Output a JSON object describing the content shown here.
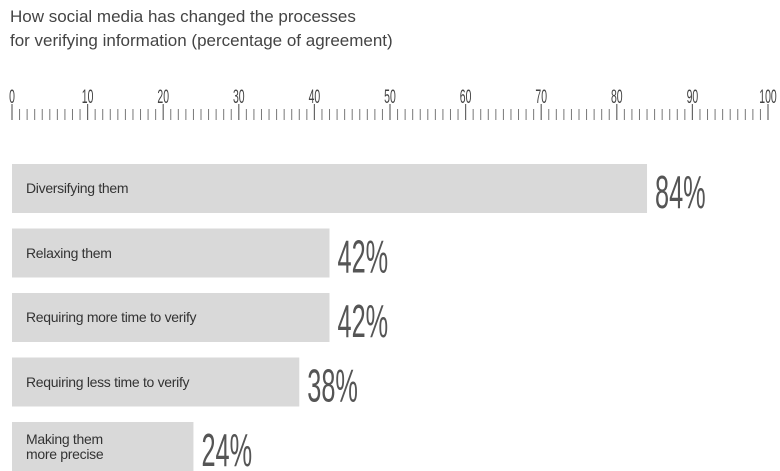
{
  "chart_data": {
    "type": "bar",
    "orientation": "horizontal",
    "title": [
      "How social media has changed the processes",
      "for verifying information (percentage of agreement)"
    ],
    "categories": [
      "Diversifying them",
      "Relaxing them",
      "Requiring more time to verify",
      "Requiring less time to verify",
      "Making them\nmore precise"
    ],
    "values": [
      84,
      42,
      42,
      38,
      24
    ],
    "value_labels": [
      "84%",
      "42%",
      "42%",
      "38%",
      "24%"
    ],
    "color": "#d9d9d9",
    "xlim": [
      0,
      100
    ],
    "xticks": [
      0,
      10,
      20,
      30,
      40,
      50,
      60,
      70,
      80,
      90,
      100
    ],
    "xminorticks": [
      1,
      2,
      3,
      4,
      5,
      6,
      7,
      8,
      9,
      11,
      12,
      13,
      14,
      15,
      16,
      17,
      18,
      19,
      21,
      22,
      23,
      24,
      25,
      26,
      27,
      28,
      29,
      31,
      32,
      33,
      34,
      35,
      36,
      37,
      38,
      39,
      41,
      42,
      43,
      44,
      45,
      46,
      47,
      48,
      49,
      51,
      52,
      53,
      54,
      55,
      56,
      57,
      58,
      59,
      61,
      62,
      63,
      64,
      65,
      66,
      67,
      68,
      69,
      71,
      72,
      73,
      74,
      75,
      76,
      77,
      78,
      79,
      81,
      82,
      83,
      84,
      85,
      86,
      87,
      88,
      89,
      91,
      92,
      93,
      94,
      95,
      96,
      97,
      98,
      99
    ]
  }
}
